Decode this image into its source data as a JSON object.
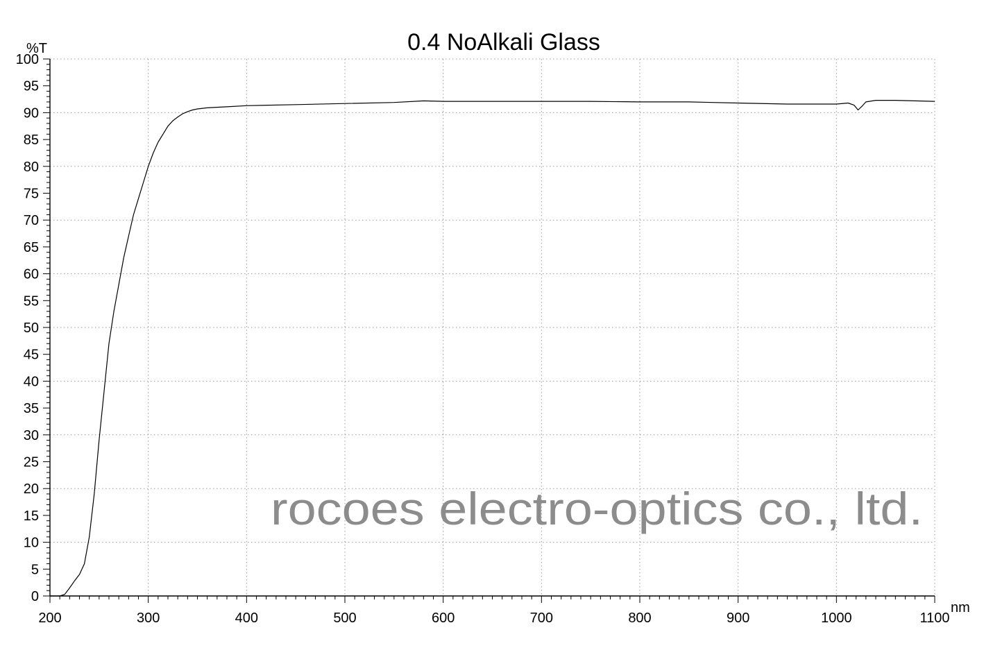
{
  "chart_data": {
    "type": "line",
    "title": "0.4 NoAlkali Glass",
    "xlabel": "nm",
    "ylabel": "%T",
    "xlim": [
      200,
      1100
    ],
    "ylim": [
      0,
      100
    ],
    "xticks": [
      200,
      300,
      400,
      500,
      600,
      700,
      800,
      900,
      1000,
      1100
    ],
    "yticks": [
      0,
      5,
      10,
      15,
      20,
      25,
      30,
      35,
      40,
      45,
      50,
      55,
      60,
      65,
      70,
      75,
      80,
      85,
      90,
      95,
      100
    ],
    "grid": true,
    "series": [
      {
        "color": "#000000",
        "x": [
          200,
          210,
          215,
          220,
          225,
          230,
          235,
          240,
          245,
          250,
          255,
          260,
          265,
          270,
          275,
          280,
          285,
          290,
          295,
          300,
          305,
          310,
          315,
          320,
          325,
          330,
          335,
          340,
          345,
          350,
          360,
          380,
          400,
          450,
          500,
          550,
          580,
          600,
          650,
          700,
          750,
          800,
          850,
          900,
          950,
          1000,
          1012,
          1018,
          1022,
          1026,
          1030,
          1040,
          1060,
          1080,
          1100
        ],
        "y": [
          0,
          0,
          0.3,
          1.5,
          2.8,
          4,
          6,
          11,
          19,
          29,
          38,
          47,
          53,
          58,
          63,
          67,
          71,
          74,
          77,
          80,
          82.5,
          84.5,
          86,
          87.5,
          88.5,
          89.2,
          89.8,
          90.2,
          90.5,
          90.7,
          90.9,
          91.1,
          91.3,
          91.5,
          91.7,
          91.9,
          92.2,
          92.1,
          92.1,
          92.1,
          92.1,
          92.0,
          92.0,
          91.8,
          91.6,
          91.6,
          91.8,
          91.4,
          90.5,
          91.2,
          92.0,
          92.3,
          92.3,
          92.2,
          92.1
        ]
      }
    ]
  },
  "watermark": "rocoes electro-optics co., ltd."
}
